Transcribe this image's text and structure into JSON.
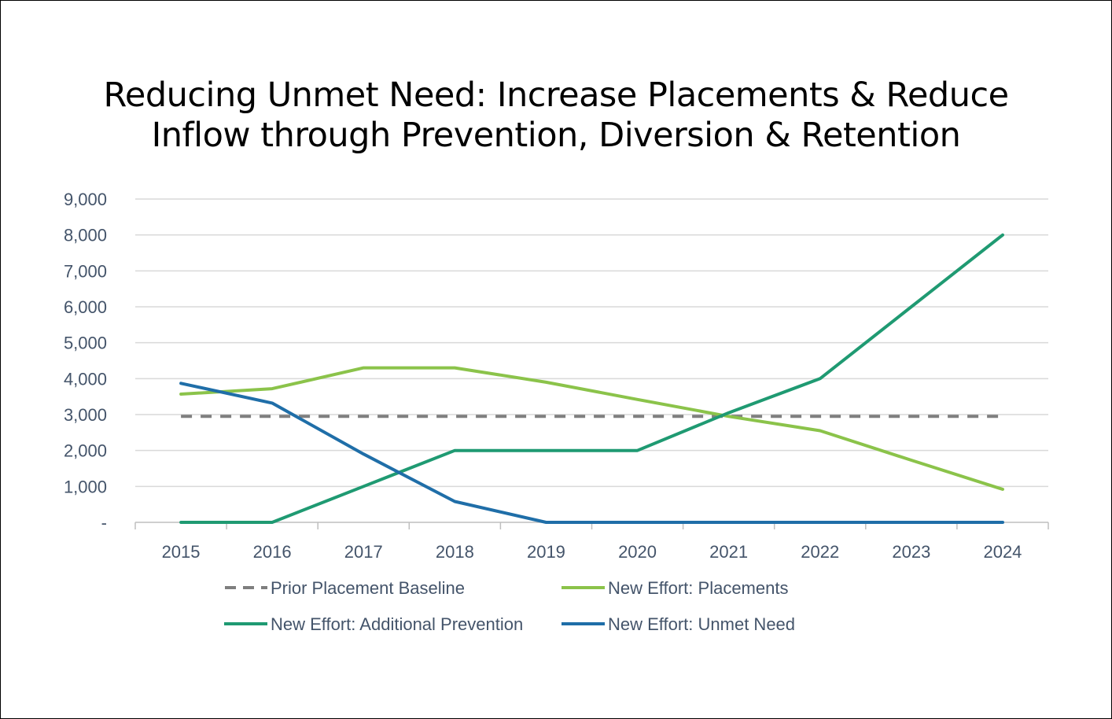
{
  "chart_data": {
    "type": "line",
    "title_lines": [
      "Reducing Unmet Need: Increase Placements & Reduce",
      "Inflow through Prevention, Diversion & Retention"
    ],
    "xlabel": "",
    "ylabel": "",
    "categories": [
      "2015",
      "2016",
      "2017",
      "2018",
      "2019",
      "2020",
      "2021",
      "2022",
      "2023",
      "2024"
    ],
    "ylim": [
      0,
      9000
    ],
    "yticks": [
      0,
      1000,
      2000,
      3000,
      4000,
      5000,
      6000,
      7000,
      8000,
      9000
    ],
    "ytick_labels": [
      "-",
      "1,000",
      "2,000",
      "3,000",
      "4,000",
      "5,000",
      "6,000",
      "7,000",
      "8,000",
      "9,000"
    ],
    "grid": true,
    "legend_position": "bottom",
    "series": [
      {
        "name": "Prior Placement Baseline",
        "color": "#7f7f7f",
        "style": "dashed",
        "values": [
          2950,
          2950,
          2950,
          2950,
          2950,
          2950,
          2950,
          2950,
          2950,
          2950
        ]
      },
      {
        "name": "New Effort: Placements",
        "color": "#8bc34a",
        "style": "solid",
        "values": [
          3570,
          3720,
          4300,
          4300,
          3900,
          3420,
          2950,
          2550,
          1730,
          920
        ]
      },
      {
        "name": "New Effort: Additional Prevention",
        "color": "#1f9a72",
        "style": "solid",
        "values": [
          0,
          0,
          1000,
          2000,
          2000,
          2000,
          3050,
          4000,
          6000,
          8000
        ]
      },
      {
        "name": "New Effort: Unmet Need",
        "color": "#1f6ea8",
        "style": "solid",
        "values": [
          3870,
          3320,
          1900,
          580,
          0,
          0,
          0,
          0,
          0,
          0
        ]
      }
    ],
    "gridline_color": "#d9d9d9",
    "axis_color": "#bfbfbf"
  }
}
